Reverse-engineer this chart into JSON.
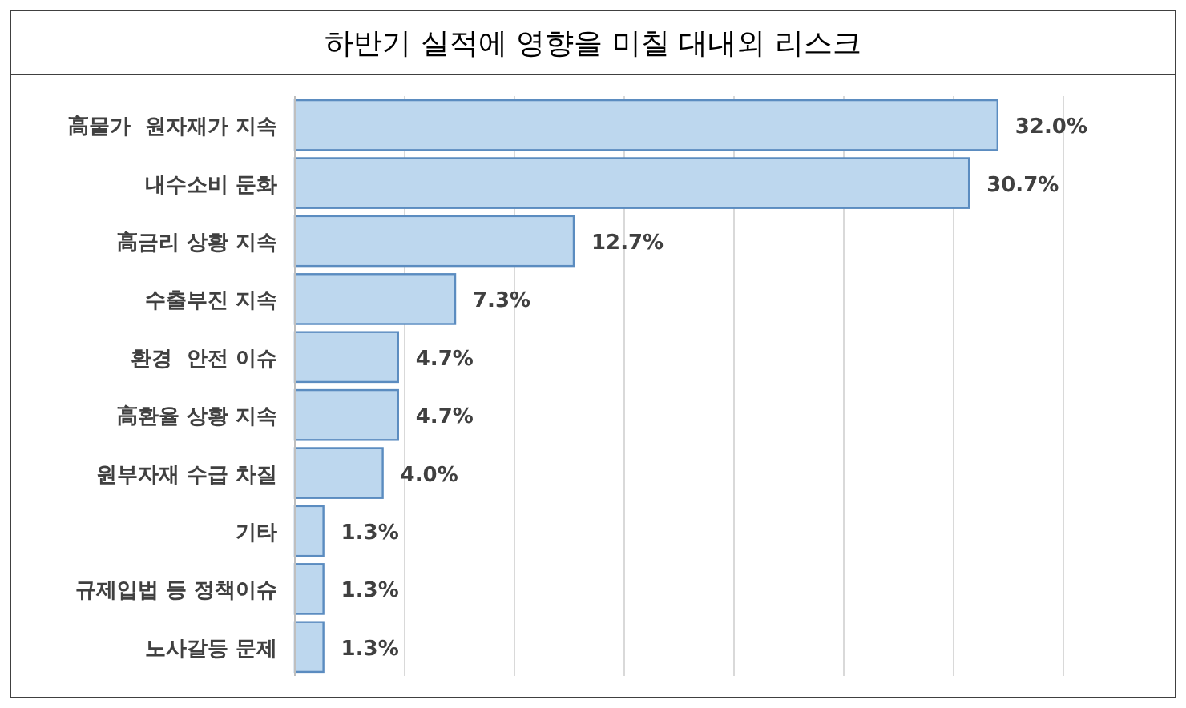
{
  "chart_data": {
    "type": "bar",
    "orientation": "horizontal",
    "title": "하반기 실적에 영향을 미칠 대내외 리스크",
    "categories": [
      "高물가  원자재가 지속",
      "내수소비 둔화",
      "高금리 상황 지속",
      "수출부진 지속",
      "환경  안전 이슈",
      "高환율 상황 지속",
      "원부자재 수급 차질",
      "기타",
      "규제입법 등 정책이슈",
      "노사갈등 문제"
    ],
    "values": [
      32.0,
      30.7,
      12.7,
      7.3,
      4.7,
      4.7,
      4.0,
      1.3,
      1.3,
      1.3
    ],
    "value_labels": [
      "32.0%",
      "30.7%",
      "12.7%",
      "7.3%",
      "4.7%",
      "4.7%",
      "4.0%",
      "1.3%",
      "1.3%",
      "1.3%"
    ],
    "color": "#bdd7ee",
    "xlim": [
      0,
      35
    ],
    "xticks": [
      {
        "value": 0,
        "label": null
      },
      {
        "value": 5,
        "label": null
      },
      {
        "value": 10,
        "label": null
      },
      {
        "value": 15,
        "label": null
      },
      {
        "value": 20,
        "label": null
      },
      {
        "value": 25,
        "label": null
      },
      {
        "value": 30,
        "label": null
      },
      {
        "value": 35,
        "label": null
      }
    ],
    "grid": "x",
    "tick_labels": "y"
  }
}
